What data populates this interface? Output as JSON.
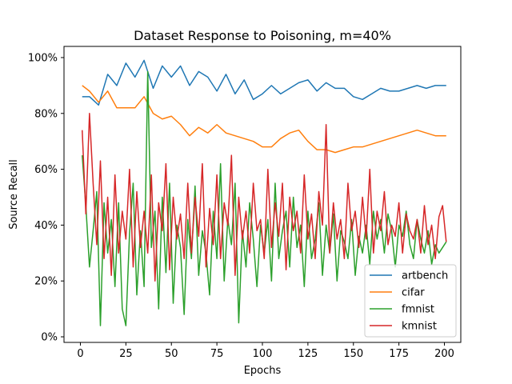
{
  "chart_data": {
    "type": "line",
    "title": "Dataset Response to Poisoning, m=40%",
    "xlabel": "Epochs",
    "ylabel": "Source Recall",
    "xlim": [
      -9,
      209
    ],
    "ylim": [
      -0.02,
      1.04
    ],
    "xticks": [
      0,
      25,
      50,
      75,
      100,
      125,
      150,
      175,
      200
    ],
    "yticks": [
      0,
      0.2,
      0.4,
      0.6,
      0.8,
      1.0
    ],
    "ytick_labels": [
      "0%",
      "20%",
      "40%",
      "60%",
      "80%",
      "100%"
    ],
    "legend_position": "lower-right",
    "grid": false,
    "series": [
      {
        "name": "artbench",
        "color": "#1f77b4",
        "x": [
          1,
          5,
          10,
          15,
          20,
          25,
          30,
          35,
          40,
          45,
          50,
          55,
          60,
          65,
          70,
          75,
          80,
          85,
          90,
          95,
          100,
          105,
          110,
          115,
          120,
          125,
          130,
          135,
          140,
          145,
          150,
          155,
          160,
          165,
          170,
          175,
          180,
          185,
          190,
          195,
          200,
          201
        ],
        "y": [
          0.86,
          0.86,
          0.83,
          0.94,
          0.9,
          0.98,
          0.93,
          0.99,
          0.89,
          0.97,
          0.93,
          0.97,
          0.9,
          0.95,
          0.93,
          0.88,
          0.94,
          0.87,
          0.92,
          0.85,
          0.87,
          0.9,
          0.87,
          0.89,
          0.91,
          0.92,
          0.88,
          0.91,
          0.89,
          0.89,
          0.86,
          0.85,
          0.87,
          0.89,
          0.88,
          0.88,
          0.89,
          0.9,
          0.89,
          0.9,
          0.9,
          0.9
        ]
      },
      {
        "name": "cifar",
        "color": "#ff7f0e",
        "x": [
          1,
          5,
          10,
          15,
          20,
          25,
          30,
          35,
          40,
          45,
          50,
          55,
          60,
          65,
          70,
          75,
          80,
          85,
          90,
          95,
          100,
          105,
          110,
          115,
          120,
          125,
          130,
          135,
          140,
          145,
          150,
          155,
          160,
          165,
          170,
          175,
          180,
          185,
          190,
          195,
          200,
          201
        ],
        "y": [
          0.9,
          0.88,
          0.84,
          0.88,
          0.82,
          0.82,
          0.82,
          0.86,
          0.8,
          0.78,
          0.79,
          0.76,
          0.72,
          0.75,
          0.73,
          0.76,
          0.73,
          0.72,
          0.71,
          0.7,
          0.68,
          0.68,
          0.71,
          0.73,
          0.74,
          0.7,
          0.67,
          0.67,
          0.66,
          0.67,
          0.68,
          0.68,
          0.69,
          0.7,
          0.71,
          0.72,
          0.73,
          0.74,
          0.73,
          0.72,
          0.72,
          0.72
        ]
      },
      {
        "name": "fmnist",
        "color": "#2ca02c",
        "x": [
          1,
          3,
          5,
          7,
          9,
          11,
          13,
          15,
          17,
          19,
          21,
          23,
          25,
          27,
          29,
          31,
          33,
          35,
          37,
          39,
          41,
          43,
          45,
          47,
          49,
          51,
          53,
          55,
          57,
          59,
          61,
          63,
          65,
          67,
          69,
          71,
          73,
          75,
          77,
          79,
          81,
          83,
          85,
          87,
          89,
          91,
          93,
          95,
          97,
          99,
          101,
          103,
          105,
          107,
          109,
          111,
          113,
          115,
          117,
          119,
          121,
          123,
          125,
          127,
          129,
          131,
          133,
          135,
          137,
          139,
          141,
          143,
          145,
          147,
          149,
          151,
          153,
          155,
          157,
          159,
          161,
          163,
          165,
          167,
          169,
          171,
          173,
          175,
          177,
          179,
          181,
          183,
          185,
          187,
          189,
          191,
          193,
          195,
          197,
          199,
          201
        ],
        "y": [
          0.65,
          0.47,
          0.25,
          0.38,
          0.52,
          0.04,
          0.48,
          0.3,
          0.42,
          0.18,
          0.48,
          0.1,
          0.04,
          0.37,
          0.55,
          0.15,
          0.38,
          0.18,
          0.95,
          0.32,
          0.45,
          0.1,
          0.5,
          0.23,
          0.55,
          0.12,
          0.4,
          0.32,
          0.08,
          0.42,
          0.28,
          0.54,
          0.22,
          0.38,
          0.3,
          0.15,
          0.45,
          0.28,
          0.62,
          0.2,
          0.42,
          0.33,
          0.55,
          0.05,
          0.38,
          0.25,
          0.48,
          0.35,
          0.18,
          0.4,
          0.3,
          0.42,
          0.2,
          0.55,
          0.28,
          0.38,
          0.45,
          0.25,
          0.5,
          0.32,
          0.4,
          0.18,
          0.45,
          0.28,
          0.35,
          0.48,
          0.22,
          0.4,
          0.3,
          0.44,
          0.2,
          0.38,
          0.34,
          0.28,
          0.42,
          0.22,
          0.36,
          0.3,
          0.4,
          0.26,
          0.45,
          0.35,
          0.42,
          0.3,
          0.44,
          0.38,
          0.25,
          0.4,
          0.36,
          0.45,
          0.33,
          0.28,
          0.42,
          0.35,
          0.3,
          0.38,
          0.26,
          0.33,
          0.3,
          0.32,
          0.34
        ]
      },
      {
        "name": "kmnist",
        "color": "#d62728",
        "x": [
          1,
          3,
          5,
          7,
          9,
          11,
          13,
          15,
          17,
          19,
          21,
          23,
          25,
          27,
          29,
          31,
          33,
          35,
          37,
          39,
          41,
          43,
          45,
          47,
          49,
          51,
          53,
          55,
          57,
          59,
          61,
          63,
          65,
          67,
          69,
          71,
          73,
          75,
          77,
          79,
          81,
          83,
          85,
          87,
          89,
          91,
          93,
          95,
          97,
          99,
          101,
          103,
          105,
          107,
          109,
          111,
          113,
          115,
          117,
          119,
          121,
          123,
          125,
          127,
          129,
          131,
          133,
          135,
          137,
          139,
          141,
          143,
          145,
          147,
          149,
          151,
          153,
          155,
          157,
          159,
          161,
          163,
          165,
          167,
          169,
          171,
          173,
          175,
          177,
          179,
          181,
          183,
          185,
          187,
          189,
          191,
          193,
          195,
          197,
          199,
          201
        ],
        "y": [
          0.74,
          0.44,
          0.8,
          0.55,
          0.33,
          0.63,
          0.28,
          0.5,
          0.22,
          0.58,
          0.3,
          0.45,
          0.35,
          0.6,
          0.25,
          0.52,
          0.32,
          0.45,
          0.3,
          0.58,
          0.2,
          0.48,
          0.38,
          0.62,
          0.24,
          0.5,
          0.35,
          0.44,
          0.28,
          0.55,
          0.3,
          0.5,
          0.36,
          0.62,
          0.25,
          0.46,
          0.33,
          0.58,
          0.28,
          0.48,
          0.4,
          0.65,
          0.22,
          0.5,
          0.35,
          0.45,
          0.3,
          0.55,
          0.38,
          0.42,
          0.28,
          0.6,
          0.32,
          0.48,
          0.36,
          0.55,
          0.24,
          0.5,
          0.38,
          0.45,
          0.3,
          0.58,
          0.35,
          0.44,
          0.28,
          0.52,
          0.4,
          0.76,
          0.3,
          0.48,
          0.35,
          0.42,
          0.28,
          0.55,
          0.38,
          0.45,
          0.32,
          0.5,
          0.35,
          0.6,
          0.3,
          0.45,
          0.38,
          0.52,
          0.33,
          0.4,
          0.36,
          0.48,
          0.3,
          0.44,
          0.38,
          0.35,
          0.42,
          0.3,
          0.47,
          0.33,
          0.4,
          0.28,
          0.43,
          0.47,
          0.34
        ]
      }
    ]
  }
}
